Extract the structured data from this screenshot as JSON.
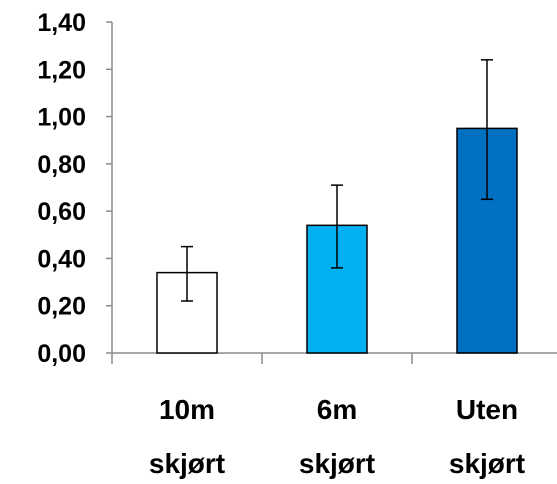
{
  "chart_data": {
    "type": "bar",
    "title": "",
    "xlabel": "",
    "ylabel": "",
    "ylim": [
      0,
      1.4
    ],
    "y_ticks": [
      "0,00",
      "0,20",
      "0,40",
      "0,60",
      "0,80",
      "1,00",
      "1,20",
      "1,40"
    ],
    "categories": [
      [
        "10m",
        "skjørt"
      ],
      [
        "6m",
        "skjørt"
      ],
      [
        "Uten",
        "skjørt"
      ]
    ],
    "values": [
      0.34,
      0.54,
      0.95
    ],
    "error_low": [
      0.22,
      0.36,
      0.65
    ],
    "error_high": [
      0.45,
      0.71,
      1.24
    ],
    "bar_colors": [
      "#ffffff",
      "#00b0f0",
      "#0070c0"
    ],
    "bar_outline": "#000000",
    "grid": false,
    "legend": "none"
  }
}
